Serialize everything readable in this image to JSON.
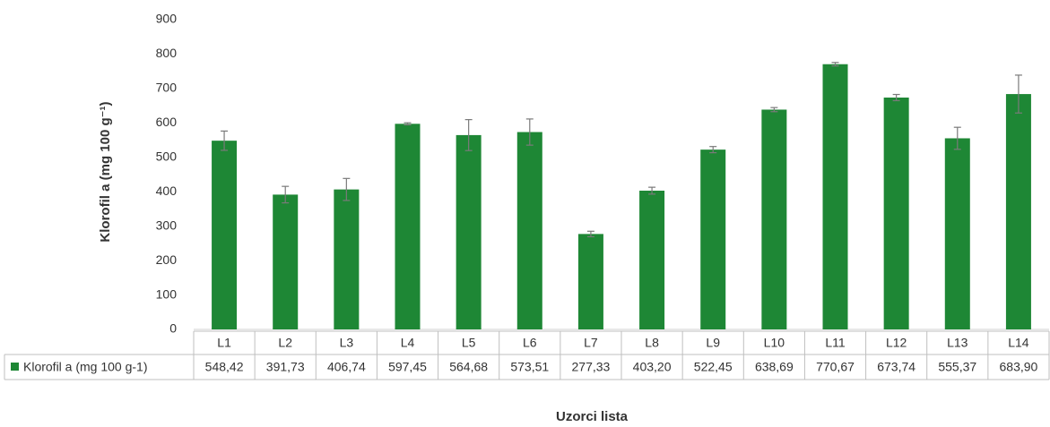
{
  "chart_data": {
    "type": "bar",
    "y_label": "Klorofil a (mg 100 g⁻¹)",
    "x_label": "Uzorci lista",
    "categories": [
      "L1",
      "L2",
      "L3",
      "L4",
      "L5",
      "L6",
      "L7",
      "L8",
      "L9",
      "L10",
      "L11",
      "L12",
      "L13",
      "L14"
    ],
    "series": [
      {
        "name": "Klorofil a (mg 100 g-1)",
        "color": "#1e8735",
        "values": [
          548.42,
          391.73,
          406.74,
          597.45,
          564.68,
          573.51,
          277.33,
          403.2,
          522.45,
          638.69,
          770.67,
          673.74,
          555.37,
          683.9
        ],
        "value_labels": [
          "548,42",
          "391,73",
          "406,74",
          "597,45",
          "564,68",
          "573,51",
          "277,33",
          "403,20",
          "522,45",
          "638,69",
          "770,67",
          "673,74",
          "555,37",
          "683,90"
        ],
        "errors": [
          28,
          24,
          32,
          3,
          45,
          38,
          8,
          10,
          9,
          6,
          5,
          9,
          32,
          55
        ]
      }
    ],
    "ylim": [
      0,
      900
    ],
    "yticks": [
      0,
      100,
      200,
      300,
      400,
      500,
      600,
      700,
      800,
      900
    ],
    "grid": false
  }
}
